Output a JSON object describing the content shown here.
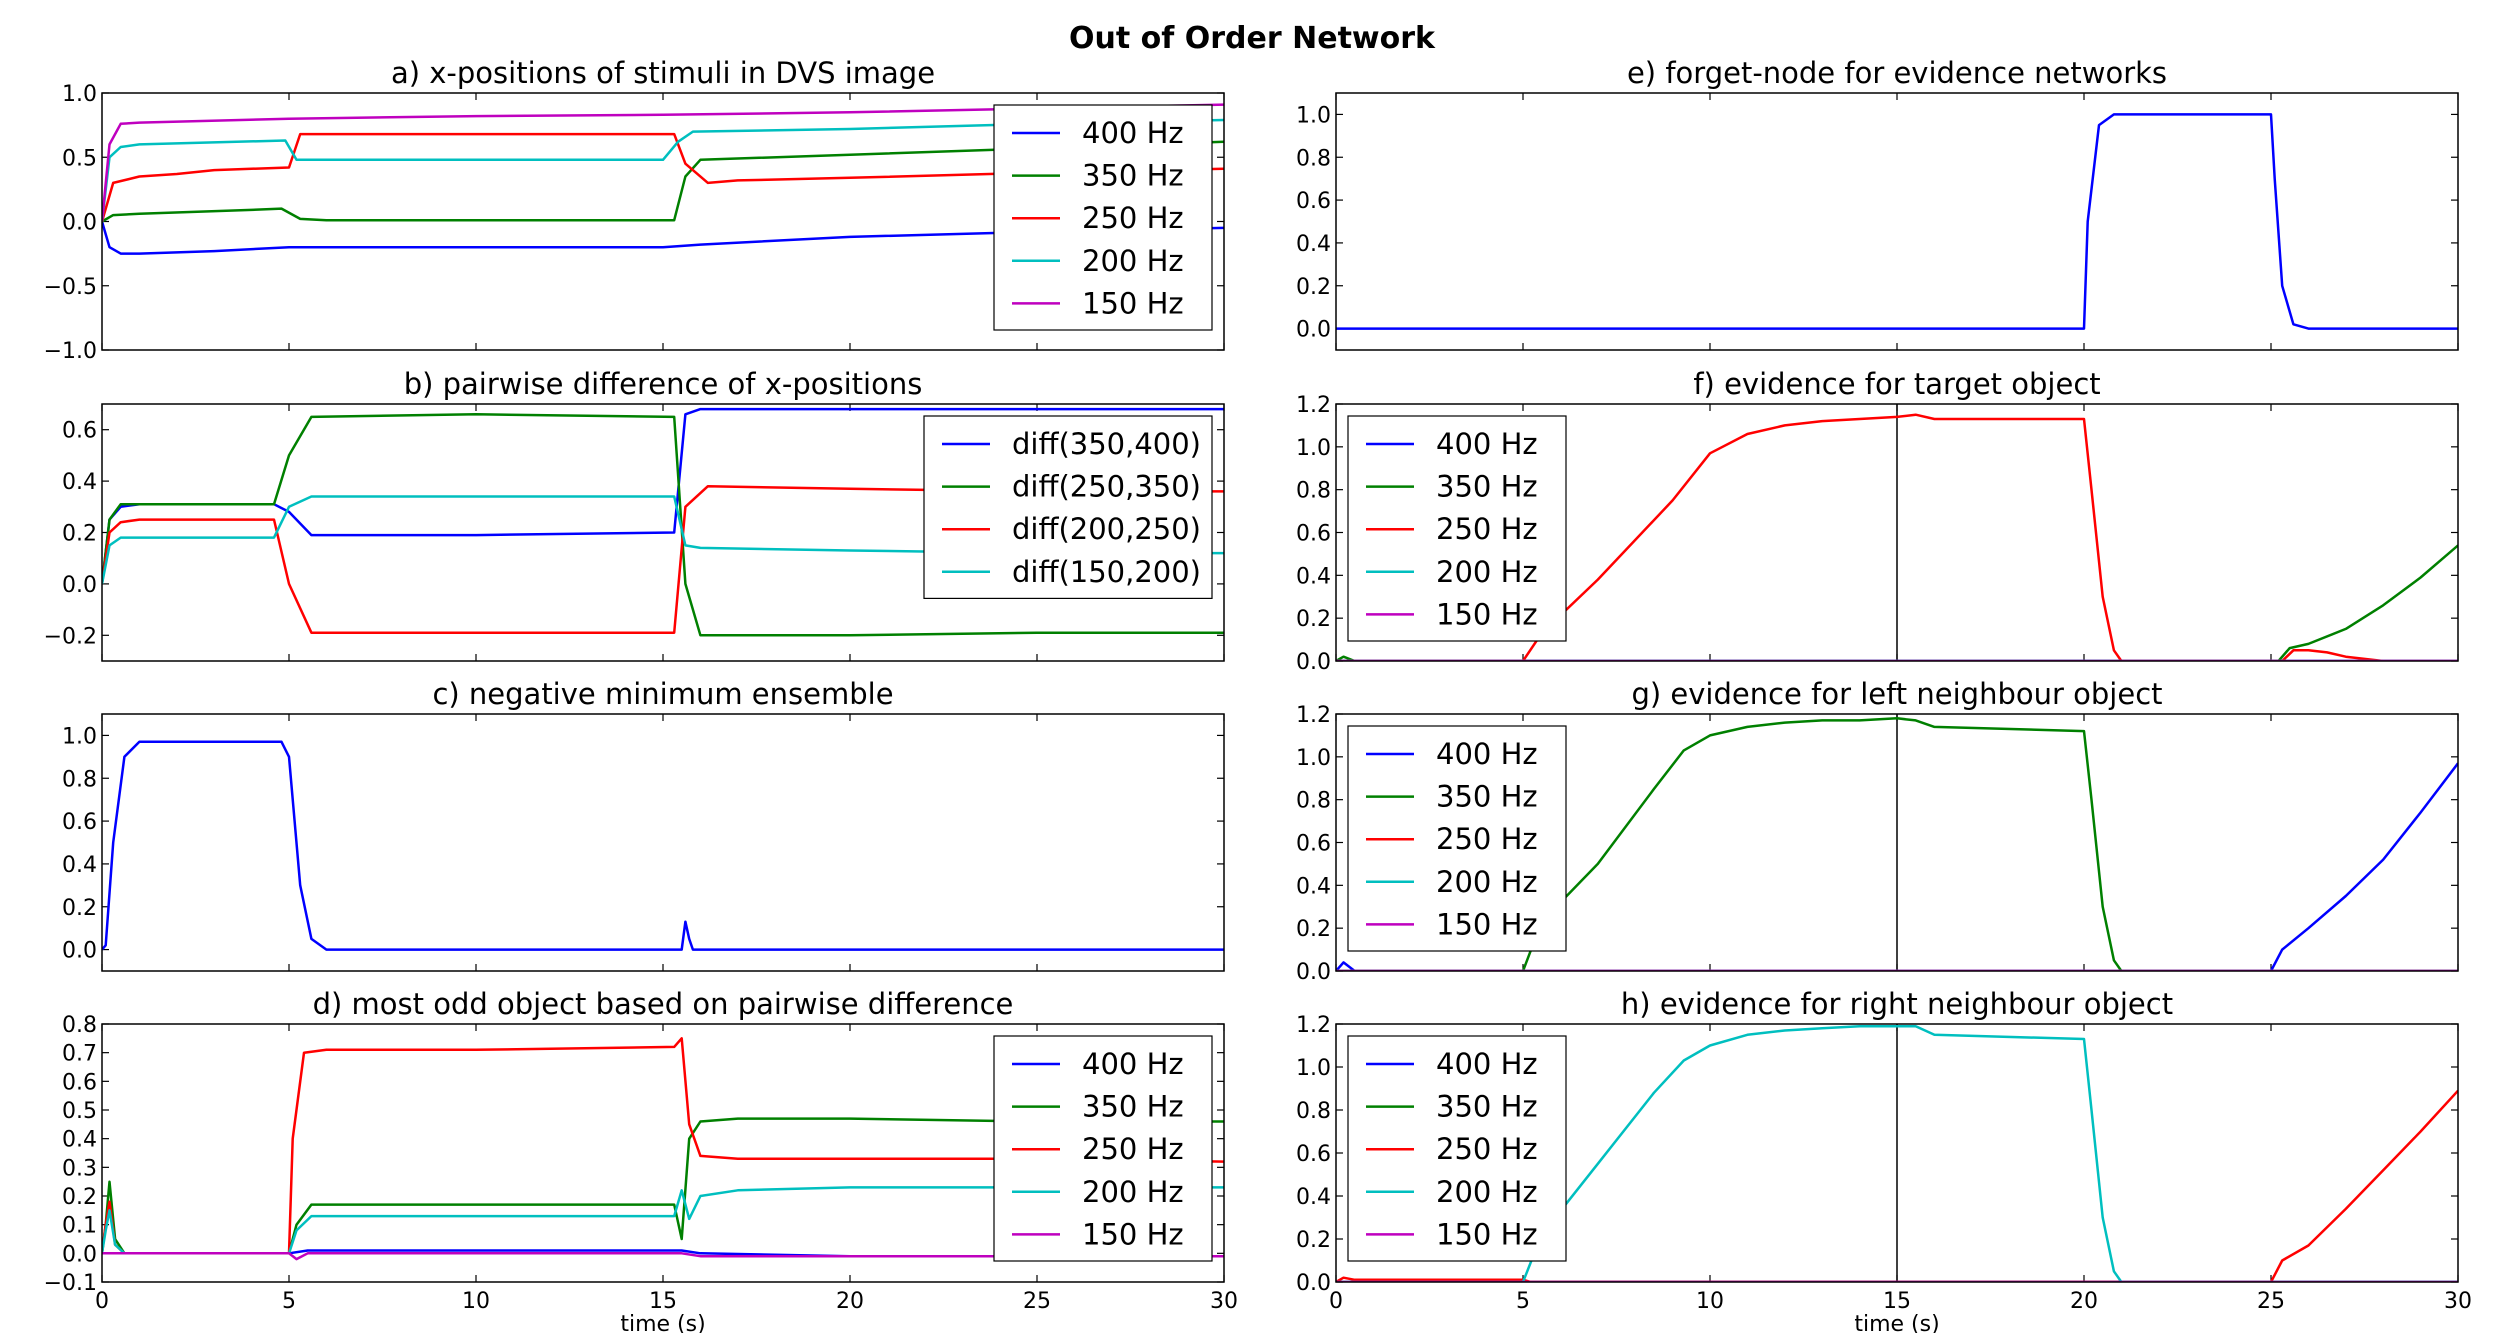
{
  "figure": {
    "suptitle": "Out of Order Network",
    "xlabel": "time (s)",
    "colors": {
      "400 Hz": "#0000ff",
      "350 Hz": "#008000",
      "250 Hz": "#ff0000",
      "200 Hz": "#00bfbf",
      "150 Hz": "#bf00bf"
    }
  },
  "chart_data": [
    {
      "id": "a",
      "type": "line",
      "title": "a) x-positions of stimuli in DVS image",
      "xlim": [
        0,
        30
      ],
      "ylim": [
        -1.0,
        1.0
      ],
      "yticks": [
        -1.0,
        -0.5,
        0.0,
        0.5,
        1.0
      ],
      "ytick_labels": [
        "−1.0",
        "−0.5",
        "0.0",
        "0.5",
        "1.0"
      ],
      "legend": "top-right",
      "series": [
        {
          "name": "400 Hz",
          "color": "#0000ff",
          "x": [
            0,
            0.2,
            0.5,
            1,
            3,
            5,
            10,
            15,
            16,
            20,
            25,
            30
          ],
          "y": [
            0,
            -0.2,
            -0.25,
            -0.25,
            -0.23,
            -0.2,
            -0.2,
            -0.2,
            -0.18,
            -0.12,
            -0.08,
            -0.05
          ]
        },
        {
          "name": "350 Hz",
          "color": "#008000",
          "x": [
            0,
            0.3,
            1,
            4,
            4.8,
            5.3,
            6,
            10,
            15.3,
            15.6,
            16,
            20,
            25,
            30
          ],
          "y": [
            0,
            0.05,
            0.06,
            0.09,
            0.1,
            0.02,
            0.01,
            0.01,
            0.01,
            0.35,
            0.48,
            0.52,
            0.57,
            0.62
          ]
        },
        {
          "name": "250 Hz",
          "color": "#ff0000",
          "x": [
            0,
            0.3,
            1,
            2,
            3,
            5,
            5.3,
            10,
            15.3,
            15.6,
            16.2,
            17,
            20,
            25,
            30
          ],
          "y": [
            0,
            0.3,
            0.35,
            0.37,
            0.4,
            0.42,
            0.68,
            0.68,
            0.68,
            0.45,
            0.3,
            0.32,
            0.34,
            0.38,
            0.41
          ]
        },
        {
          "name": "200 Hz",
          "color": "#00bfbf",
          "x": [
            0,
            0.2,
            0.5,
            1,
            4.9,
            5.2,
            10,
            15,
            15.4,
            15.8,
            20,
            25,
            30
          ],
          "y": [
            0,
            0.5,
            0.58,
            0.6,
            0.63,
            0.48,
            0.48,
            0.48,
            0.62,
            0.7,
            0.72,
            0.76,
            0.79
          ]
        },
        {
          "name": "150 Hz",
          "color": "#bf00bf",
          "x": [
            0,
            0.2,
            0.5,
            1,
            5,
            10,
            15,
            20,
            25,
            30
          ],
          "y": [
            0,
            0.6,
            0.76,
            0.77,
            0.8,
            0.82,
            0.83,
            0.85,
            0.88,
            0.91
          ]
        }
      ]
    },
    {
      "id": "b",
      "type": "line",
      "title": "b) pairwise difference of x-positions",
      "xlim": [
        0,
        30
      ],
      "ylim": [
        -0.3,
        0.7
      ],
      "yticks": [
        -0.2,
        0.0,
        0.2,
        0.4,
        0.6
      ],
      "ytick_labels": [
        "−0.2",
        "0.0",
        "0.2",
        "0.4",
        "0.6"
      ],
      "legend": "top-right",
      "series": [
        {
          "name": "diff(350,400)",
          "color": "#0000ff",
          "x": [
            0,
            0.2,
            0.5,
            1,
            4.6,
            5,
            5.6,
            10,
            15.3,
            15.6,
            16,
            20,
            25,
            30
          ],
          "y": [
            0,
            0.25,
            0.3,
            0.31,
            0.31,
            0.28,
            0.19,
            0.19,
            0.2,
            0.66,
            0.68,
            0.68,
            0.68,
            0.68
          ]
        },
        {
          "name": "diff(250,350)",
          "color": "#008000",
          "x": [
            0,
            0.2,
            0.5,
            1,
            4.6,
            5,
            5.6,
            10,
            15.3,
            15.6,
            16,
            20,
            25,
            30
          ],
          "y": [
            0,
            0.25,
            0.31,
            0.31,
            0.31,
            0.5,
            0.65,
            0.66,
            0.65,
            0.0,
            -0.2,
            -0.2,
            -0.19,
            -0.19
          ]
        },
        {
          "name": "diff(200,250)",
          "color": "#ff0000",
          "x": [
            0,
            0.2,
            0.5,
            1,
            4.6,
            5,
            5.6,
            10,
            15.3,
            15.6,
            16.2,
            20,
            25,
            30
          ],
          "y": [
            0,
            0.2,
            0.24,
            0.25,
            0.25,
            0.0,
            -0.19,
            -0.19,
            -0.19,
            0.3,
            0.38,
            0.37,
            0.36,
            0.36
          ]
        },
        {
          "name": "diff(150,200)",
          "color": "#00bfbf",
          "x": [
            0,
            0.2,
            0.5,
            1,
            4.6,
            5,
            5.6,
            10,
            15.3,
            15.6,
            16,
            20,
            25,
            30
          ],
          "y": [
            0,
            0.15,
            0.18,
            0.18,
            0.18,
            0.3,
            0.34,
            0.34,
            0.34,
            0.15,
            0.14,
            0.13,
            0.12,
            0.12
          ]
        }
      ]
    },
    {
      "id": "c",
      "type": "line",
      "title": "c) negative minimum ensemble",
      "xlim": [
        0,
        30
      ],
      "ylim": [
        -0.1,
        1.1
      ],
      "yticks": [
        0.0,
        0.2,
        0.4,
        0.6,
        0.8,
        1.0
      ],
      "ytick_labels": [
        "0.0",
        "0.2",
        "0.4",
        "0.6",
        "0.8",
        "1.0"
      ],
      "legend": "none",
      "series": [
        {
          "name": "",
          "color": "#0000ff",
          "x": [
            0,
            0.1,
            0.3,
            0.6,
            1,
            4.8,
            5,
            5.3,
            5.6,
            6,
            15.5,
            15.6,
            15.7,
            15.8,
            16,
            30
          ],
          "y": [
            0,
            0.02,
            0.5,
            0.9,
            0.97,
            0.97,
            0.9,
            0.3,
            0.05,
            0.0,
            0.0,
            0.13,
            0.05,
            0.0,
            0.0,
            0.0
          ]
        }
      ]
    },
    {
      "id": "d",
      "type": "line",
      "title": "d) most odd object based on pairwise difference",
      "xlim": [
        0,
        30
      ],
      "ylim": [
        -0.1,
        0.8
      ],
      "yticks": [
        -0.1,
        0.0,
        0.1,
        0.2,
        0.3,
        0.4,
        0.5,
        0.6,
        0.7,
        0.8
      ],
      "ytick_labels": [
        "−0.1",
        "0.0",
        "0.1",
        "0.2",
        "0.3",
        "0.4",
        "0.5",
        "0.6",
        "0.7",
        "0.8"
      ],
      "legend": "top-right",
      "series": [
        {
          "name": "400 Hz",
          "color": "#0000ff",
          "x": [
            0,
            5,
            5.5,
            10,
            15.5,
            16,
            20,
            25,
            30
          ],
          "y": [
            0,
            0,
            0.01,
            0.01,
            0.01,
            0.0,
            -0.01,
            -0.01,
            -0.01
          ]
        },
        {
          "name": "350 Hz",
          "color": "#008000",
          "x": [
            0,
            0.1,
            0.2,
            0.35,
            0.6,
            5,
            5.2,
            5.6,
            6,
            10,
            15.3,
            15.5,
            15.7,
            16,
            17,
            20,
            25,
            30
          ],
          "y": [
            0,
            0.1,
            0.25,
            0.05,
            0.0,
            0.0,
            0.1,
            0.17,
            0.17,
            0.17,
            0.17,
            0.05,
            0.4,
            0.46,
            0.47,
            0.47,
            0.46,
            0.46
          ]
        },
        {
          "name": "250 Hz",
          "color": "#ff0000",
          "x": [
            0,
            0.1,
            0.2,
            0.35,
            0.6,
            5,
            5.1,
            5.4,
            6,
            10,
            15.3,
            15.5,
            15.7,
            16,
            17,
            20,
            25,
            30
          ],
          "y": [
            0,
            0.1,
            0.18,
            0.03,
            0.0,
            0.0,
            0.4,
            0.7,
            0.71,
            0.71,
            0.72,
            0.75,
            0.45,
            0.34,
            0.33,
            0.33,
            0.33,
            0.32
          ]
        },
        {
          "name": "200 Hz",
          "color": "#00bfbf",
          "x": [
            0,
            0.1,
            0.2,
            0.35,
            0.6,
            5,
            5.2,
            5.6,
            10,
            15.3,
            15.5,
            15.7,
            16,
            17,
            20,
            25,
            30
          ],
          "y": [
            0,
            0.08,
            0.15,
            0.03,
            0.0,
            0.0,
            0.08,
            0.13,
            0.13,
            0.13,
            0.22,
            0.12,
            0.2,
            0.22,
            0.23,
            0.23,
            0.23
          ]
        },
        {
          "name": "150 Hz",
          "color": "#bf00bf",
          "x": [
            0,
            0.3,
            0.5,
            5,
            5.2,
            5.5,
            10,
            15.5,
            16,
            20,
            25,
            30
          ],
          "y": [
            0,
            0.0,
            0.0,
            0.0,
            -0.02,
            0.0,
            0.0,
            0.0,
            -0.01,
            -0.01,
            -0.01,
            -0.01
          ]
        }
      ]
    },
    {
      "id": "e",
      "type": "line",
      "title": "e) forget-node for evidence networks",
      "xlim": [
        0,
        30
      ],
      "ylim": [
        -0.1,
        1.1
      ],
      "yticks": [
        0.0,
        0.2,
        0.4,
        0.6,
        0.8,
        1.0
      ],
      "ytick_labels": [
        "0.0",
        "0.2",
        "0.4",
        "0.6",
        "0.8",
        "1.0"
      ],
      "legend": "none",
      "series": [
        {
          "name": "",
          "color": "#0000ff",
          "x": [
            0,
            20,
            20.1,
            20.4,
            20.8,
            25,
            25.1,
            25.3,
            25.6,
            26,
            30
          ],
          "y": [
            0,
            0,
            0.5,
            0.95,
            1.0,
            1.0,
            0.7,
            0.2,
            0.02,
            0.0,
            0.0
          ]
        }
      ]
    },
    {
      "id": "f",
      "type": "line",
      "title": "f) evidence for target object",
      "xlim": [
        0,
        30
      ],
      "ylim": [
        0.0,
        1.2
      ],
      "yticks": [
        0.0,
        0.2,
        0.4,
        0.6,
        0.8,
        1.0,
        1.2
      ],
      "ytick_labels": [
        "0.0",
        "0.2",
        "0.4",
        "0.6",
        "0.8",
        "1.0",
        "1.2"
      ],
      "vline": 15,
      "legend": "top-left",
      "series": [
        {
          "name": "400 Hz",
          "color": "#0000ff",
          "x": [
            0,
            30
          ],
          "y": [
            0,
            0
          ]
        },
        {
          "name": "350 Hz",
          "color": "#008000",
          "x": [
            0,
            0.2,
            0.5,
            25.2,
            25.5,
            26,
            27,
            28,
            29,
            30
          ],
          "y": [
            0,
            0.02,
            0.0,
            0.0,
            0.06,
            0.08,
            0.15,
            0.26,
            0.39,
            0.54
          ]
        },
        {
          "name": "250 Hz",
          "color": "#ff0000",
          "x": [
            0,
            5,
            5.5,
            7,
            9,
            10,
            11,
            12,
            13,
            14,
            15,
            15.5,
            16,
            20,
            20.2,
            20.5,
            20.8,
            21,
            25.3,
            25.6,
            26,
            26.5,
            27,
            27.5,
            28,
            30
          ],
          "y": [
            0,
            0,
            0.13,
            0.38,
            0.75,
            0.97,
            1.06,
            1.1,
            1.12,
            1.13,
            1.14,
            1.15,
            1.13,
            1.13,
            0.8,
            0.3,
            0.05,
            0.0,
            0.0,
            0.05,
            0.05,
            0.04,
            0.02,
            0.01,
            0.0,
            0.0
          ]
        },
        {
          "name": "200 Hz",
          "color": "#00bfbf",
          "x": [
            0,
            30
          ],
          "y": [
            0,
            0
          ]
        },
        {
          "name": "150 Hz",
          "color": "#bf00bf",
          "x": [
            0,
            30
          ],
          "y": [
            0,
            0
          ]
        }
      ]
    },
    {
      "id": "g",
      "type": "line",
      "title": "g) evidence for left neighbour object",
      "xlim": [
        0,
        30
      ],
      "ylim": [
        0.0,
        1.2
      ],
      "yticks": [
        0.0,
        0.2,
        0.4,
        0.6,
        0.8,
        1.0,
        1.2
      ],
      "ytick_labels": [
        "0.0",
        "0.2",
        "0.4",
        "0.6",
        "0.8",
        "1.0",
        "1.2"
      ],
      "vline": 15,
      "legend": "top-left",
      "series": [
        {
          "name": "400 Hz",
          "color": "#0000ff",
          "x": [
            0,
            0.2,
            0.5,
            25,
            25.3,
            26,
            27,
            28,
            29,
            30
          ],
          "y": [
            0,
            0.04,
            0.0,
            0.0,
            0.1,
            0.2,
            0.35,
            0.52,
            0.74,
            0.97
          ]
        },
        {
          "name": "350 Hz",
          "color": "#008000",
          "x": [
            0,
            5,
            5.5,
            7,
            8.5,
            9.3,
            10,
            11,
            12,
            13,
            14,
            15,
            15.5,
            16,
            20,
            20.2,
            20.5,
            20.8,
            21,
            30
          ],
          "y": [
            0,
            0,
            0.23,
            0.5,
            0.85,
            1.03,
            1.1,
            1.14,
            1.16,
            1.17,
            1.17,
            1.18,
            1.17,
            1.14,
            1.12,
            0.8,
            0.3,
            0.05,
            0.0,
            0.0
          ]
        },
        {
          "name": "250 Hz",
          "color": "#ff0000",
          "x": [
            0,
            30
          ],
          "y": [
            0,
            0
          ]
        },
        {
          "name": "200 Hz",
          "color": "#00bfbf",
          "x": [
            0,
            30
          ],
          "y": [
            0,
            0
          ]
        },
        {
          "name": "150 Hz",
          "color": "#bf00bf",
          "x": [
            0,
            30
          ],
          "y": [
            0,
            0
          ]
        }
      ]
    },
    {
      "id": "h",
      "type": "line",
      "title": "h) evidence for right neighbour object",
      "xlim": [
        0,
        30
      ],
      "ylim": [
        0.0,
        1.2
      ],
      "yticks": [
        0.0,
        0.2,
        0.4,
        0.6,
        0.8,
        1.0,
        1.2
      ],
      "ytick_labels": [
        "0.0",
        "0.2",
        "0.4",
        "0.6",
        "0.8",
        "1.0",
        "1.2"
      ],
      "vline": 15,
      "legend": "top-left",
      "series": [
        {
          "name": "400 Hz",
          "color": "#0000ff",
          "x": [
            0,
            30
          ],
          "y": [
            0,
            0
          ]
        },
        {
          "name": "350 Hz",
          "color": "#008000",
          "x": [
            0,
            30
          ],
          "y": [
            0,
            0
          ]
        },
        {
          "name": "250 Hz",
          "color": "#ff0000",
          "x": [
            0,
            0.2,
            0.5,
            5,
            5.2,
            25,
            25.3,
            26,
            27,
            28,
            29,
            30
          ],
          "y": [
            0,
            0.02,
            0.01,
            0.01,
            0.0,
            0.0,
            0.1,
            0.17,
            0.34,
            0.52,
            0.7,
            0.89
          ]
        },
        {
          "name": "200 Hz",
          "color": "#00bfbf",
          "x": [
            0,
            5,
            5.5,
            7,
            8.5,
            9.3,
            10,
            11,
            12,
            13,
            14,
            15,
            15.5,
            16,
            20,
            20.2,
            20.5,
            20.8,
            21,
            30
          ],
          "y": [
            0,
            0,
            0.22,
            0.55,
            0.88,
            1.03,
            1.1,
            1.15,
            1.17,
            1.18,
            1.19,
            1.19,
            1.19,
            1.15,
            1.13,
            0.8,
            0.3,
            0.05,
            0.0,
            0.0
          ]
        },
        {
          "name": "150 Hz",
          "color": "#bf00bf",
          "x": [
            0,
            30
          ],
          "y": [
            0,
            0
          ]
        }
      ]
    }
  ]
}
